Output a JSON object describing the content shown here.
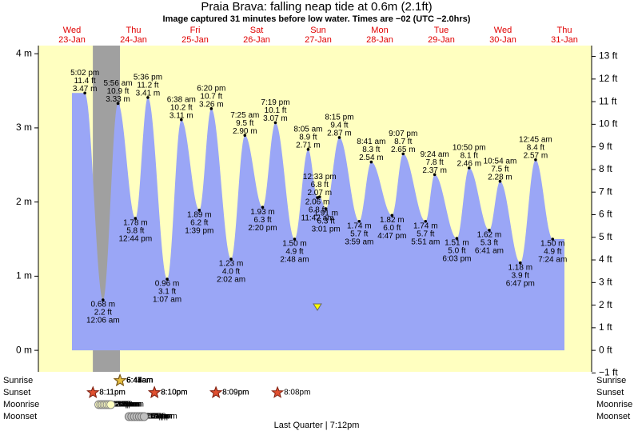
{
  "chart_data": {
    "type": "tide",
    "title": "Praia Brava: falling  neap tide at 0.6m (2.1ft)",
    "subtitle": "Image captured 31 minutes before low water. Times are −02 (UTC −2.0hrs)",
    "days": [
      {
        "weekday": "Wed",
        "date": "23-Jan"
      },
      {
        "weekday": "Thu",
        "date": "24-Jan"
      },
      {
        "weekday": "Fri",
        "date": "25-Jan"
      },
      {
        "weekday": "Sat",
        "date": "26-Jan"
      },
      {
        "weekday": "Sun",
        "date": "27-Jan"
      },
      {
        "weekday": "Mon",
        "date": "28-Jan"
      },
      {
        "weekday": "Tue",
        "date": "29-Jan"
      },
      {
        "weekday": "Wed",
        "date": "30-Jan"
      },
      {
        "weekday": "Thu",
        "date": "31-Jan"
      }
    ],
    "ylim": [
      -0.29,
      4.11
    ],
    "yticks": [
      {
        "value": 0,
        "label": "0 m"
      },
      {
        "value": 1,
        "label": "1 m"
      },
      {
        "value": 2,
        "label": "2 m"
      },
      {
        "value": 3,
        "label": "3 m"
      },
      {
        "value": 4,
        "label": "4 m"
      }
    ],
    "y2lim": [
      -0.95,
      13.48
    ],
    "y2ticks": [
      {
        "value": -1,
        "label": "−1 ft"
      },
      {
        "value": 0,
        "label": "0 ft"
      },
      {
        "value": 1,
        "label": "1 ft"
      },
      {
        "value": 2,
        "label": "2 ft"
      },
      {
        "value": 3,
        "label": "3 ft"
      },
      {
        "value": 4,
        "label": "4 ft"
      },
      {
        "value": 5,
        "label": "5 ft"
      },
      {
        "value": 6,
        "label": "6 ft"
      },
      {
        "value": 7,
        "label": "7 ft"
      },
      {
        "value": 8,
        "label": "8 ft"
      },
      {
        "value": 9,
        "label": "9 ft"
      },
      {
        "value": 10,
        "label": "10 ft"
      },
      {
        "value": 11,
        "label": "11 ft"
      },
      {
        "value": 12,
        "label": "12 ft"
      },
      {
        "value": 13,
        "label": "13 ft"
      }
    ],
    "color": "#9aa6f6",
    "events": {
      "times": [
        "5:02 pm",
        "12:06 am",
        "5:56 am",
        "12:44 pm",
        "5:36 pm",
        "1:07 am",
        "6:38 am",
        "1:39 pm",
        "6:20 pm",
        "2:02 am",
        "7:25 am",
        "2:20 pm",
        "7:19 pm",
        "2:48 am",
        "8:05 am",
        "11:42 am",
        "12:33 pm",
        "3:01 pm",
        "8:15 pm",
        "3:59 am",
        "8:41 am",
        "4:47 pm",
        "9:07 pm",
        "5:51 am",
        "9:24 am",
        "6:03 pm",
        "10:50 pm",
        "6:41 am",
        "10:54 am",
        "6:47 pm",
        "12:45 am",
        "7:24 am"
      ],
      "values": [
        3.47,
        0.68,
        3.33,
        1.78,
        3.41,
        0.96,
        3.11,
        1.89,
        3.26,
        1.23,
        2.9,
        1.93,
        3.07,
        1.5,
        2.71,
        2.06,
        2.07,
        1.91,
        2.87,
        1.74,
        2.54,
        1.82,
        2.65,
        1.74,
        2.37,
        1.51,
        2.46,
        1.62,
        2.28,
        1.18,
        2.57,
        1.5
      ],
      "value_labels": [
        "3.47 m",
        "0.68 m",
        "3.33 m",
        "1.78 m",
        "3.41 m",
        "0.96 m",
        "3.11 m",
        "1.89 m",
        "3.26 m",
        "1.23 m",
        "2.90 m",
        "1.93 m",
        "3.07 m",
        "1.50 m",
        "2.71 m",
        "2.06 m",
        "2.07 m",
        "1.91 m",
        "2.87 m",
        "1.74 m",
        "2.54 m",
        "1.82 m",
        "2.65 m",
        "1.74 m",
        "2.37 m",
        "1.51 m",
        "2.46 m",
        "1.62 m",
        "2.28 m",
        "1.18 m",
        "2.57 m",
        "1.50 m"
      ],
      "ft_labels": [
        "11.4 ft",
        "2.2 ft",
        "10.9 ft",
        "5.8 ft",
        "11.2 ft",
        "3.1 ft",
        "10.2 ft",
        "6.2 ft",
        "10.7 ft",
        "4.0 ft",
        "9.5 ft",
        "6.3 ft",
        "10.1 ft",
        "4.9 ft",
        "8.9 ft",
        "6.8 ft",
        "6.8 ft",
        "6.3 ft",
        "9.4 ft",
        "5.7 ft",
        "8.3 ft",
        "6.0 ft",
        "8.7 ft",
        "5.7 ft",
        "7.8 ft",
        "5.0 ft",
        "8.1 ft",
        "5.3 ft",
        "7.5 ft",
        "3.9 ft",
        "8.4 ft",
        "4.9 ft"
      ]
    },
    "astronomy": [
      {
        "name": "Sunrise",
        "times": [
          "6:41am",
          "6:42am",
          "6:43am",
          "6:44am",
          "6:44am",
          "6:45am",
          "6:46am",
          "6:47am"
        ]
      },
      {
        "name": "Sunset",
        "times": [
          "8:11pm",
          "8:11pm",
          "8:10pm",
          "8:10pm",
          "8:10pm",
          "8:09pm",
          "8:09pm",
          "8:08pm"
        ]
      },
      {
        "name": "Moonrise",
        "times": [
          "10:28pm",
          "11:10pm",
          "11:49pm",
          "12:28am",
          "1:06am",
          "1:45am",
          "2:26am",
          "3:09am"
        ]
      },
      {
        "name": "Moonset",
        "times": [
          "10:15am",
          "11:19am",
          "12:20pm",
          "1:19pm",
          "2:17pm",
          "3:14pm",
          "4:09pm"
        ]
      }
    ],
    "moon_phase": "Last Quarter | 7:12pm"
  }
}
